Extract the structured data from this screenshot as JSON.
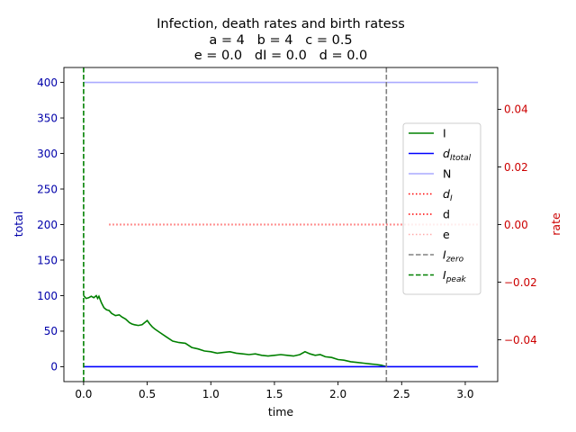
{
  "chart_data": {
    "type": "line",
    "title": {
      "line1": "Infection, death rates and birth ratess",
      "line2": "a = 4   b = 4   c = 0.5",
      "line3": "e = 0.0   dI = 0.0   d = 0.0"
    },
    "xlabel": "time",
    "ylabel_left": "total",
    "ylabel_right": "rate",
    "xlim": [
      -0.155,
      3.255
    ],
    "ylim_left": [
      -21,
      421
    ],
    "ylim_right": [
      -0.0545,
      0.0545
    ],
    "x_ticks": [
      0.0,
      0.5,
      1.0,
      1.5,
      2.0,
      2.5,
      3.0
    ],
    "x_tick_labels": [
      "0.0",
      "0.5",
      "1.0",
      "1.5",
      "2.0",
      "2.5",
      "3.0"
    ],
    "y_left_ticks": [
      0,
      50,
      100,
      150,
      200,
      250,
      300,
      350,
      400
    ],
    "y_left_tick_labels": [
      "0",
      "50",
      "100",
      "150",
      "200",
      "250",
      "300",
      "350",
      "400"
    ],
    "y_right_ticks": [
      -0.04,
      -0.02,
      0.0,
      0.02,
      0.04
    ],
    "y_right_tick_labels": [
      "−0.04",
      "−0.02",
      "0.00",
      "0.02",
      "0.04"
    ],
    "colors": {
      "left_axis": "#0000aa",
      "right_axis": "#cc0000",
      "I": "#008000",
      "dItotal": "#0000ff",
      "N": "#aaaaff",
      "dI": "#ff0000",
      "d": "#ff0000",
      "e": "#ffaaaa",
      "Izero": "#808080",
      "Ipeak": "#008000"
    },
    "series": [
      {
        "key": "I",
        "axis": "left",
        "style": "solid",
        "x": [
          0.0,
          0.01,
          0.02,
          0.04,
          0.06,
          0.08,
          0.1,
          0.11,
          0.12,
          0.14,
          0.16,
          0.18,
          0.2,
          0.22,
          0.25,
          0.28,
          0.3,
          0.33,
          0.36,
          0.38,
          0.4,
          0.43,
          0.46,
          0.5,
          0.52,
          0.54,
          0.56,
          0.6,
          0.65,
          0.7,
          0.75,
          0.8,
          0.85,
          0.9,
          0.95,
          1.0,
          1.05,
          1.1,
          1.15,
          1.2,
          1.25,
          1.3,
          1.35,
          1.4,
          1.45,
          1.5,
          1.55,
          1.6,
          1.65,
          1.7,
          1.74,
          1.78,
          1.82,
          1.86,
          1.9,
          1.95,
          2.0,
          2.05,
          2.1,
          2.15,
          2.2,
          2.25,
          2.3,
          2.34,
          2.38
        ],
        "y": [
          100,
          98,
          96,
          97,
          99,
          97,
          100,
          96,
          99,
          90,
          83,
          80,
          79,
          75,
          72,
          73,
          70,
          67,
          62,
          60,
          59,
          58,
          59,
          65,
          60,
          56,
          53,
          48,
          42,
          36,
          34,
          33,
          27,
          25,
          22,
          21,
          19,
          20,
          21,
          19,
          18,
          17,
          18,
          16,
          15,
          16,
          17,
          16,
          15,
          17,
          21,
          18,
          16,
          17,
          14,
          13,
          10,
          9,
          7,
          6,
          5,
          4,
          3,
          2,
          0
        ]
      },
      {
        "key": "dItotal",
        "axis": "left",
        "style": "solid",
        "x": [
          0.0,
          3.1
        ],
        "y": [
          0,
          0
        ]
      },
      {
        "key": "N",
        "axis": "left",
        "style": "solid",
        "x": [
          0.0,
          3.1
        ],
        "y": [
          400,
          400
        ]
      },
      {
        "key": "dI",
        "axis": "right",
        "style": "dotted",
        "x": [
          0.2,
          3.1
        ],
        "y": [
          0.0,
          0.0
        ]
      },
      {
        "key": "d",
        "axis": "right",
        "style": "dotted",
        "x": [
          0.2,
          3.1
        ],
        "y": [
          0.0,
          0.0
        ]
      },
      {
        "key": "e",
        "axis": "right",
        "style": "dotted",
        "x": [
          0.2,
          3.1
        ],
        "y": [
          0.0,
          0.0
        ]
      }
    ],
    "vlines": [
      {
        "key": "Izero",
        "x": 2.38,
        "style": "dashed"
      },
      {
        "key": "Ipeak",
        "x": 0.0,
        "style": "dashed"
      }
    ],
    "legend": {
      "placement": "right",
      "entries": [
        {
          "key": "I",
          "base": "I",
          "sub": "",
          "style": "solid"
        },
        {
          "key": "dItotal",
          "base": "d",
          "sub": "Itotal",
          "style": "solid"
        },
        {
          "key": "N",
          "base": "N",
          "sub": "",
          "style": "solid"
        },
        {
          "key": "dI",
          "base": "d",
          "sub": "I",
          "style": "dotted"
        },
        {
          "key": "d",
          "base": "d",
          "sub": "",
          "style": "dotted"
        },
        {
          "key": "e",
          "base": "e",
          "sub": "",
          "style": "dotted"
        },
        {
          "key": "Izero",
          "base": "I",
          "sub": "zero",
          "style": "dashed"
        },
        {
          "key": "Ipeak",
          "base": "I",
          "sub": "peak",
          "style": "dashed"
        }
      ]
    }
  }
}
